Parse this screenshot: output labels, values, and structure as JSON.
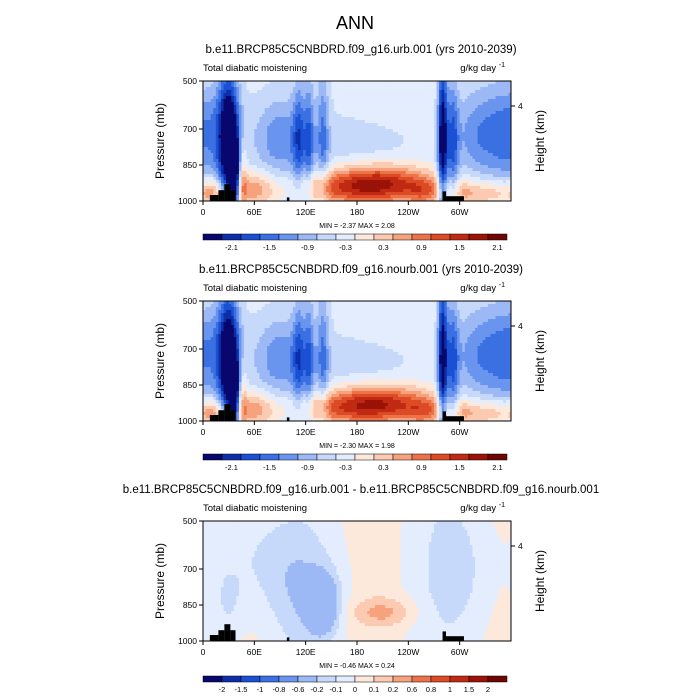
{
  "figure": {
    "title": "ANN"
  },
  "chart_data": [
    {
      "type": "heatmap",
      "title": "b.e11.BRCP85C5CNBDRD.f09_g16.urb.001 (yrs 2010-2039)",
      "left_label": "Total diabatic moistening",
      "units": "g/kg day",
      "units_exp": "-1",
      "ylabel": "Pressure (mb)",
      "ylabel_right": "Height (km)",
      "y_ticks": [
        "500",
        "700",
        "850",
        "1000"
      ],
      "y_ticks_right": [
        "4"
      ],
      "x_ticks": [
        "0",
        "60E",
        "120E",
        "180",
        "120W",
        "60W"
      ],
      "min_max": "MIN =  -2.37  MAX =   2.08",
      "colorbar_labels": [
        "-2.1",
        "-1.5",
        "-0.9",
        "-0.3",
        "0.3",
        "0.9",
        "1.5",
        "2.1"
      ],
      "colorbar_colors": [
        "#08076e",
        "#0d2ea8",
        "#1a51d4",
        "#3b70e2",
        "#6a95ee",
        "#9cb9f5",
        "#c6d9fb",
        "#e3edfd",
        "#fde9dc",
        "#fbcab0",
        "#f6a27c",
        "#ec7349",
        "#dc4a26",
        "#c12a12",
        "#9a1306",
        "#6e0703"
      ],
      "xlim": [
        0,
        360
      ],
      "ylim": [
        1000,
        500
      ],
      "features": [
        {
          "lon": 30,
          "p": 760,
          "v": -2.2,
          "w": 8,
          "h": 220
        },
        {
          "lon": 38,
          "p": 900,
          "v": -2.0,
          "w": 5,
          "h": 120
        },
        {
          "lon": 20,
          "p": 720,
          "v": -1.0,
          "w": 18,
          "h": 160
        },
        {
          "lon": 90,
          "p": 740,
          "v": -0.9,
          "w": 22,
          "h": 120
        },
        {
          "lon": 112,
          "p": 740,
          "v": -1.0,
          "w": 5,
          "h": 170
        },
        {
          "lon": 124,
          "p": 740,
          "v": -1.0,
          "w": 4,
          "h": 170
        },
        {
          "lon": 140,
          "p": 720,
          "v": -0.9,
          "w": 5,
          "h": 180
        },
        {
          "lon": 200,
          "p": 760,
          "v": -0.3,
          "w": 60,
          "h": 80
        },
        {
          "lon": 280,
          "p": 740,
          "v": -2.3,
          "w": 4,
          "h": 250
        },
        {
          "lon": 292,
          "p": 760,
          "v": -1.2,
          "w": 5,
          "h": 200
        },
        {
          "lon": 320,
          "p": 720,
          "v": -0.9,
          "w": 20,
          "h": 140
        },
        {
          "lon": 350,
          "p": 720,
          "v": -0.7,
          "w": 15,
          "h": 140
        },
        {
          "lon": 205,
          "p": 930,
          "v": 2.0,
          "w": 40,
          "h": 55
        },
        {
          "lon": 150,
          "p": 950,
          "v": 0.8,
          "w": 30,
          "h": 50
        },
        {
          "lon": 60,
          "p": 950,
          "v": 1.0,
          "w": 20,
          "h": 50
        },
        {
          "lon": 45,
          "p": 900,
          "v": 1.2,
          "w": 4,
          "h": 120
        },
        {
          "lon": 12,
          "p": 965,
          "v": 0.9,
          "w": 10,
          "h": 40
        },
        {
          "lon": 260,
          "p": 960,
          "v": 0.8,
          "w": 15,
          "h": 40
        },
        {
          "lon": 305,
          "p": 965,
          "v": 0.7,
          "w": 14,
          "h": 40
        },
        {
          "lon": 340,
          "p": 965,
          "v": 0.8,
          "w": 20,
          "h": 40
        }
      ]
    },
    {
      "type": "heatmap",
      "title": "b.e11.BRCP85C5CNBDRD.f09_g16.nourb.001 (yrs 2010-2039)",
      "left_label": "Total diabatic moistening",
      "units": "g/kg day",
      "units_exp": "-1",
      "ylabel": "Pressure (mb)",
      "ylabel_right": "Height (km)",
      "y_ticks": [
        "500",
        "700",
        "850",
        "1000"
      ],
      "y_ticks_right": [
        "4"
      ],
      "x_ticks": [
        "0",
        "60E",
        "120E",
        "180",
        "120W",
        "60W"
      ],
      "min_max": "MIN =  -2.30  MAX =   1.98",
      "colorbar_labels": [
        "-2.1",
        "-1.5",
        "-0.9",
        "-0.3",
        "0.3",
        "0.9",
        "1.5",
        "2.1"
      ],
      "colorbar_colors": [
        "#08076e",
        "#0d2ea8",
        "#1a51d4",
        "#3b70e2",
        "#6a95ee",
        "#9cb9f5",
        "#c6d9fb",
        "#e3edfd",
        "#fde9dc",
        "#fbcab0",
        "#f6a27c",
        "#ec7349",
        "#dc4a26",
        "#c12a12",
        "#9a1306",
        "#6e0703"
      ],
      "xlim": [
        0,
        360
      ],
      "ylim": [
        1000,
        500
      ],
      "features": [
        {
          "lon": 30,
          "p": 760,
          "v": -2.1,
          "w": 8,
          "h": 220
        },
        {
          "lon": 38,
          "p": 900,
          "v": -1.9,
          "w": 5,
          "h": 120
        },
        {
          "lon": 20,
          "p": 720,
          "v": -1.0,
          "w": 18,
          "h": 160
        },
        {
          "lon": 90,
          "p": 740,
          "v": -0.9,
          "w": 22,
          "h": 120
        },
        {
          "lon": 112,
          "p": 740,
          "v": -1.0,
          "w": 5,
          "h": 170
        },
        {
          "lon": 124,
          "p": 740,
          "v": -1.0,
          "w": 4,
          "h": 170
        },
        {
          "lon": 140,
          "p": 720,
          "v": -0.9,
          "w": 5,
          "h": 180
        },
        {
          "lon": 200,
          "p": 760,
          "v": -0.3,
          "w": 60,
          "h": 80
        },
        {
          "lon": 280,
          "p": 740,
          "v": -2.2,
          "w": 4,
          "h": 250
        },
        {
          "lon": 292,
          "p": 760,
          "v": -1.2,
          "w": 5,
          "h": 200
        },
        {
          "lon": 320,
          "p": 720,
          "v": -0.9,
          "w": 20,
          "h": 140
        },
        {
          "lon": 350,
          "p": 720,
          "v": -0.7,
          "w": 15,
          "h": 140
        },
        {
          "lon": 205,
          "p": 930,
          "v": 1.9,
          "w": 40,
          "h": 55
        },
        {
          "lon": 150,
          "p": 950,
          "v": 0.8,
          "w": 30,
          "h": 50
        },
        {
          "lon": 60,
          "p": 950,
          "v": 1.0,
          "w": 20,
          "h": 50
        },
        {
          "lon": 45,
          "p": 900,
          "v": 1.1,
          "w": 4,
          "h": 120
        },
        {
          "lon": 12,
          "p": 965,
          "v": 0.9,
          "w": 10,
          "h": 40
        },
        {
          "lon": 260,
          "p": 960,
          "v": 0.8,
          "w": 15,
          "h": 40
        },
        {
          "lon": 305,
          "p": 965,
          "v": 0.7,
          "w": 14,
          "h": 40
        },
        {
          "lon": 340,
          "p": 965,
          "v": 0.8,
          "w": 20,
          "h": 40
        }
      ]
    },
    {
      "type": "heatmap",
      "title": "b.e11.BRCP85C5CNBDRD.f09_g16.urb.001 - b.e11.BRCP85C5CNBDRD.f09_g16.nourb.001",
      "left_label": "Total diabatic moistening",
      "units": "g/kg day",
      "units_exp": "-1",
      "ylabel": "Pressure (mb)",
      "ylabel_right": "Height (km)",
      "y_ticks": [
        "500",
        "700",
        "850",
        "1000"
      ],
      "y_ticks_right": [
        "4"
      ],
      "x_ticks": [
        "0",
        "60E",
        "120E",
        "180",
        "120W",
        "60W"
      ],
      "min_max": "MIN =  -0.46  MAX =   0.24",
      "colorbar_labels": [
        "-2",
        "-1.5",
        "-1",
        "-0.8",
        "-0.6",
        "-0.2",
        "-0.1",
        "0",
        "0.1",
        "0.2",
        "0.6",
        "0.8",
        "1",
        "1.5",
        "2"
      ],
      "colorbar_colors": [
        "#08076e",
        "#0d2ea8",
        "#1a51d4",
        "#3b70e2",
        "#6a95ee",
        "#9cb9f5",
        "#c6d9fb",
        "#e3edfd",
        "#fde9dc",
        "#fbcab0",
        "#f6a27c",
        "#ec7349",
        "#dc4a26",
        "#c12a12",
        "#9a1306",
        "#6e0703"
      ],
      "xlim": [
        0,
        360
      ],
      "ylim": [
        1000,
        500
      ],
      "features": [
        {
          "lon": 140,
          "p": 850,
          "v": -0.4,
          "w": 12,
          "h": 80
        },
        {
          "lon": 120,
          "p": 800,
          "v": -0.15,
          "w": 30,
          "h": 150
        },
        {
          "lon": 210,
          "p": 880,
          "v": 0.2,
          "w": 25,
          "h": 40
        },
        {
          "lon": 60,
          "p": 650,
          "v": -0.12,
          "w": 40,
          "h": 150
        },
        {
          "lon": 300,
          "p": 700,
          "v": -0.12,
          "w": 30,
          "h": 200
        },
        {
          "lon": 30,
          "p": 860,
          "v": -0.12,
          "w": 15,
          "h": 120
        }
      ]
    }
  ]
}
